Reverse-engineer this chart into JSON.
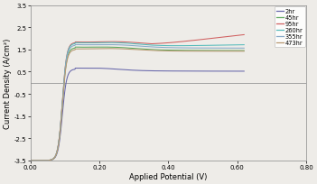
{
  "xlabel": "Applied Potential (V)",
  "ylabel": "Current Density (A/cm²)",
  "xlim": [
    0.0,
    0.8
  ],
  "ylim": [
    -3.5,
    3.5
  ],
  "xticks": [
    0.0,
    0.2,
    0.4,
    0.6,
    0.8
  ],
  "yticks": [
    -3.5,
    -2.5,
    -1.5,
    -0.5,
    0.5,
    1.5,
    2.5,
    3.5
  ],
  "legend_labels": [
    "2hr",
    "45hr",
    "95hr",
    "260hr",
    "355hr",
    "473hr"
  ],
  "line_colors": [
    "#6666aa",
    "#60aa60",
    "#d06060",
    "#55bbbb",
    "#88aac8",
    "#b89870"
  ],
  "background_color": "#eeece8",
  "zero_line_color": "#888888"
}
